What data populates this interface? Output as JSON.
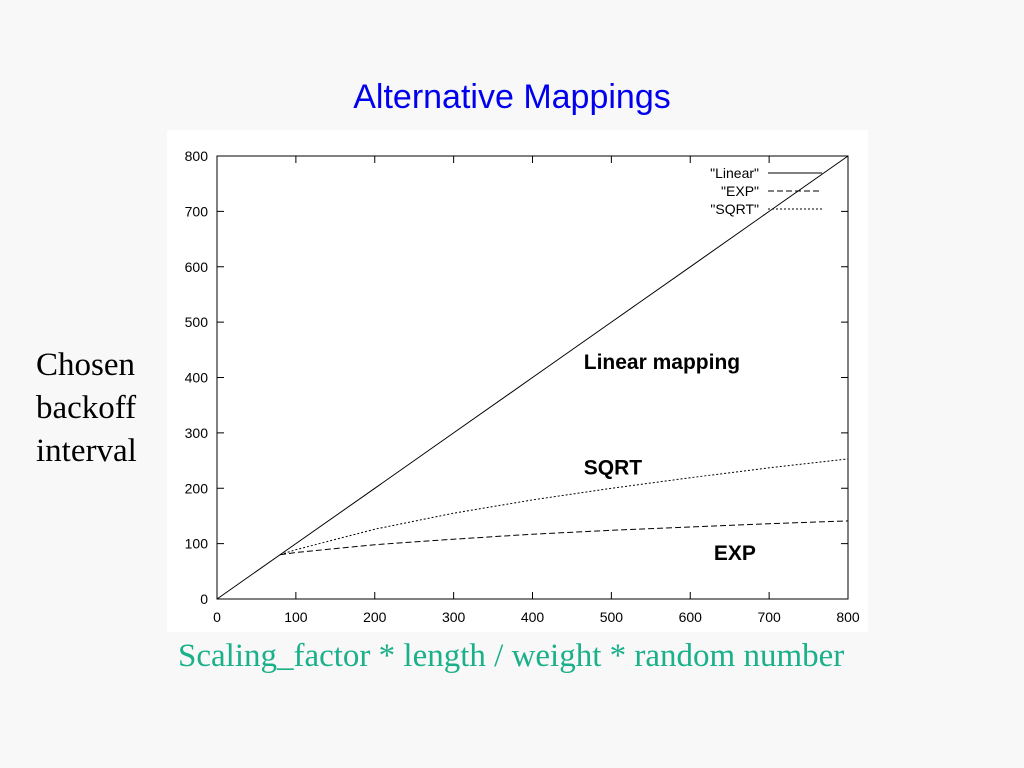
{
  "slide": {
    "title": "Alternative Mappings",
    "ylabel_lines": [
      "Chosen",
      "backoff",
      "interval"
    ],
    "xlabel": "Scaling_factor * length / weight * random number"
  },
  "colors": {
    "title": "#0000ee",
    "xlabel": "#19b08a",
    "background": "#f8f8f8",
    "plot_background": "#ffffff",
    "ink": "#000000"
  },
  "chart_data": {
    "type": "line",
    "xlim": [
      0,
      800
    ],
    "ylim": [
      0,
      800
    ],
    "xticks": [
      0,
      100,
      200,
      300,
      400,
      500,
      600,
      700,
      800
    ],
    "yticks": [
      0,
      100,
      200,
      300,
      400,
      500,
      600,
      700,
      800
    ],
    "grid": false,
    "legend_position": "top-right",
    "series": [
      {
        "name": "\"Linear\"",
        "style": "solid",
        "x": [
          0,
          100,
          200,
          300,
          400,
          500,
          600,
          700,
          800
        ],
        "y": [
          0,
          100,
          200,
          300,
          400,
          500,
          600,
          700,
          800
        ]
      },
      {
        "name": "\"EXP\"",
        "style": "dashed",
        "x": [
          80,
          100,
          200,
          300,
          400,
          500,
          600,
          700,
          800
        ],
        "y": [
          80,
          84,
          98,
          108,
          117,
          124,
          130,
          136,
          141
        ]
      },
      {
        "name": "\"SQRT\"",
        "style": "dotted",
        "x": [
          80,
          100,
          200,
          300,
          400,
          500,
          600,
          700,
          800
        ],
        "y": [
          80,
          89,
          126,
          155,
          179,
          200,
          219,
          237,
          253
        ]
      }
    ],
    "annotations": [
      {
        "text": "Linear mapping",
        "x": 465,
        "y": 415
      },
      {
        "text": "SQRT",
        "x": 465,
        "y": 225
      },
      {
        "text": "EXP",
        "x": 630,
        "y": 70
      }
    ]
  }
}
